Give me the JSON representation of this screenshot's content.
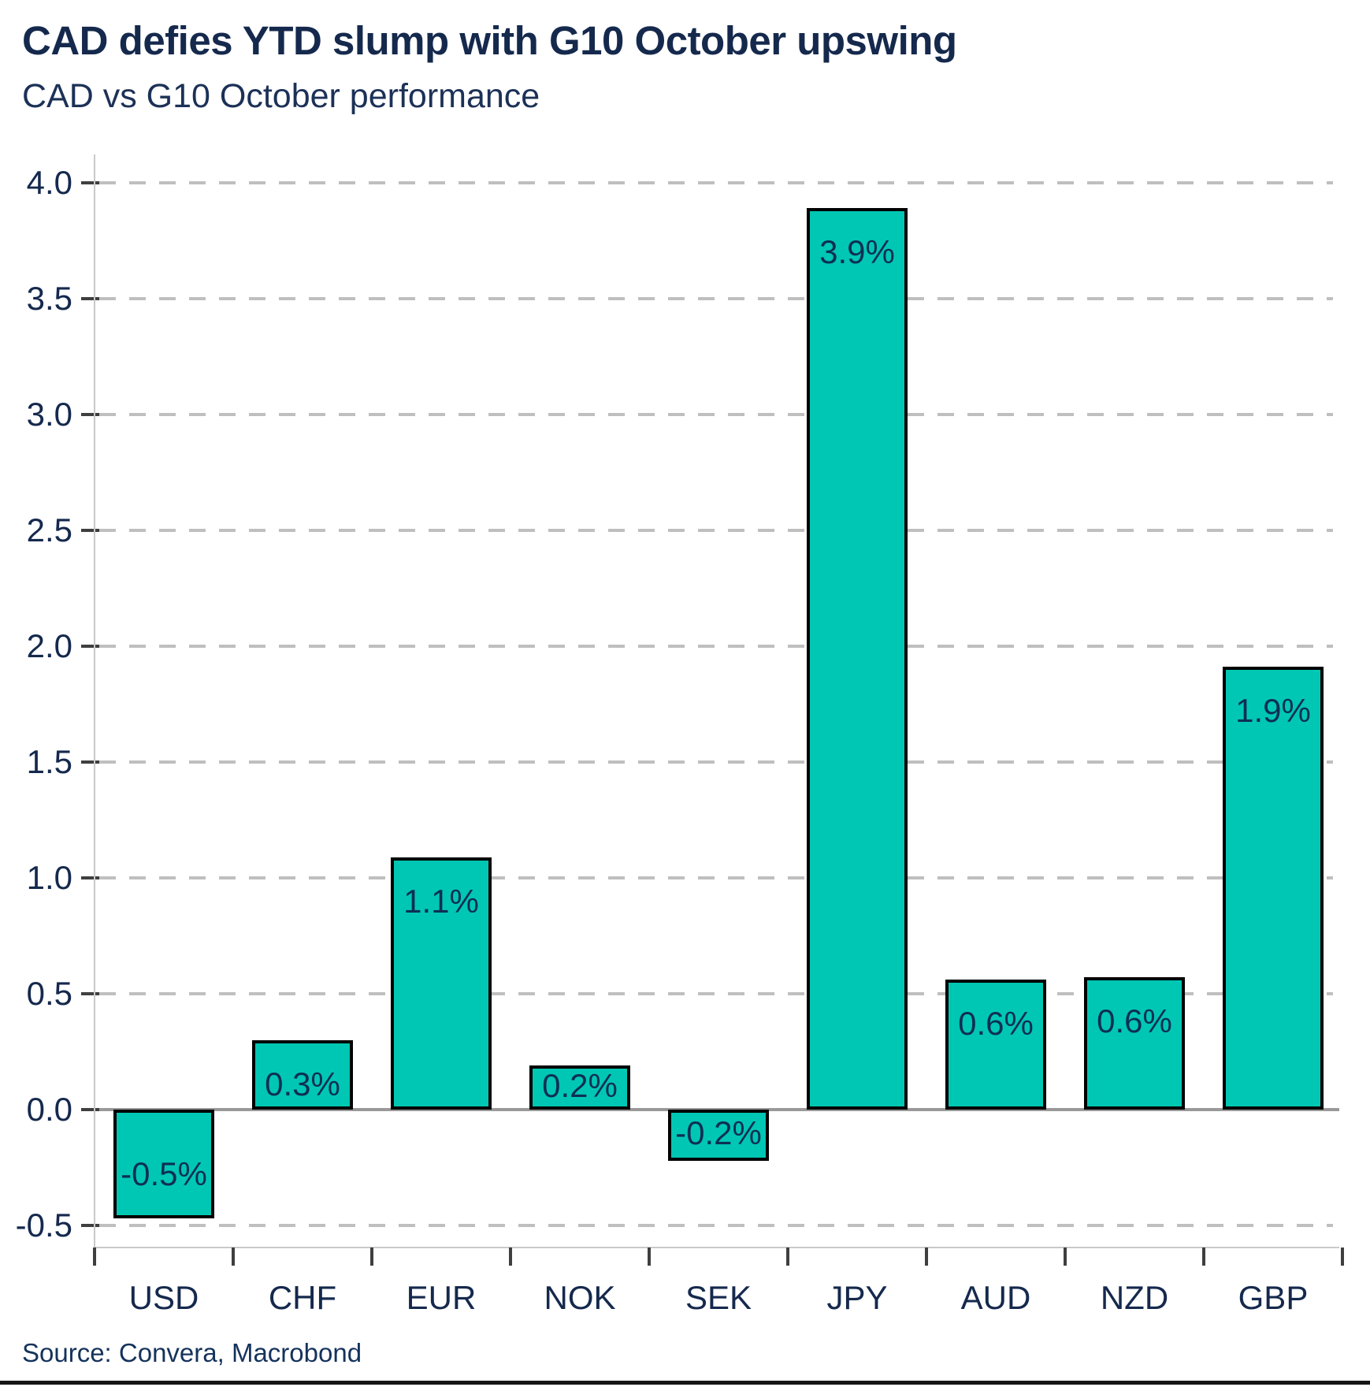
{
  "header": {
    "title": "CAD defies YTD slump with G10 October upswing",
    "subtitle": "CAD vs G10 October performance"
  },
  "footer": {
    "source": "Source: Convera, Macrobond"
  },
  "chart_data": {
    "type": "bar",
    "title": "CAD defies YTD slump with G10 October upswing",
    "subtitle": "CAD vs G10 October performance",
    "categories": [
      "USD",
      "CHF",
      "EUR",
      "NOK",
      "SEK",
      "JPY",
      "AUD",
      "NZD",
      "GBP"
    ],
    "values": [
      -0.5,
      0.3,
      1.1,
      0.2,
      -0.2,
      3.9,
      0.6,
      0.6,
      1.9
    ],
    "values_precise": [
      -0.47,
      0.3,
      1.09,
      0.19,
      -0.22,
      3.89,
      0.56,
      0.57,
      1.91
    ],
    "bar_labels": [
      "-0.5%",
      "0.3%",
      "1.1%",
      "0.2%",
      "-0.2%",
      "3.9%",
      "0.6%",
      "0.6%",
      "1.9%"
    ],
    "y_tick_labels": [
      "4.0",
      "3.5",
      "3.0",
      "2.5",
      "2.0",
      "1.5",
      "1.0",
      "0.5",
      "0.0",
      "-0.5"
    ],
    "y_tick_values": [
      4.0,
      3.5,
      3.0,
      2.5,
      2.0,
      1.5,
      1.0,
      0.5,
      0.0,
      -0.5
    ],
    "ylim": [
      -0.5,
      4.0
    ],
    "xlabel": "",
    "ylabel": "",
    "grid": "horizontal-dashed",
    "legend_position": "none",
    "colors": {
      "bar_fill": "#00c7b3",
      "bar_border": "#000000",
      "gridline": "#bfbfbf",
      "zero_line": "#999999",
      "axis_line": "#c9c9c9",
      "tick_mark": "#3f3f3f",
      "title_text": "#15294d",
      "bar_label_text": "#0d2f55"
    }
  }
}
